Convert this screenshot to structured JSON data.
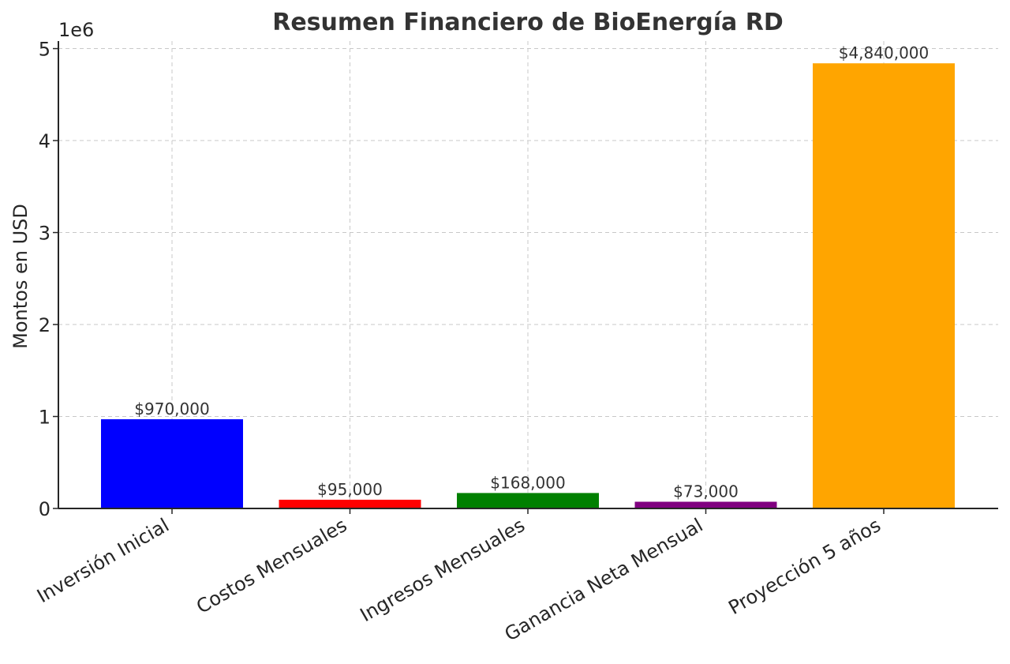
{
  "chart_data": {
    "type": "bar",
    "title": "Resumen Financiero de BioEnergía RD",
    "xlabel": "",
    "ylabel": "Montos en USD",
    "y_offset_label": "1e6",
    "categories": [
      "Inversión Inicial",
      "Costos Mensuales",
      "Ingresos Mensuales",
      "Ganancia Neta Mensual",
      "Proyección 5 años"
    ],
    "values": [
      970000,
      95000,
      168000,
      73000,
      4840000
    ],
    "data_labels": [
      "$970,000",
      "$95,000",
      "$168,000",
      "$73,000",
      "$4,840,000"
    ],
    "colors": [
      "#0000ff",
      "#ff0000",
      "#008000",
      "#800080",
      "#ffa500"
    ],
    "y_ticks": [
      0,
      1,
      2,
      3,
      4,
      5
    ],
    "y_tick_scale": 1000000,
    "ylim": [
      0,
      5082000
    ],
    "grid": true,
    "grid_style": "dashed"
  }
}
